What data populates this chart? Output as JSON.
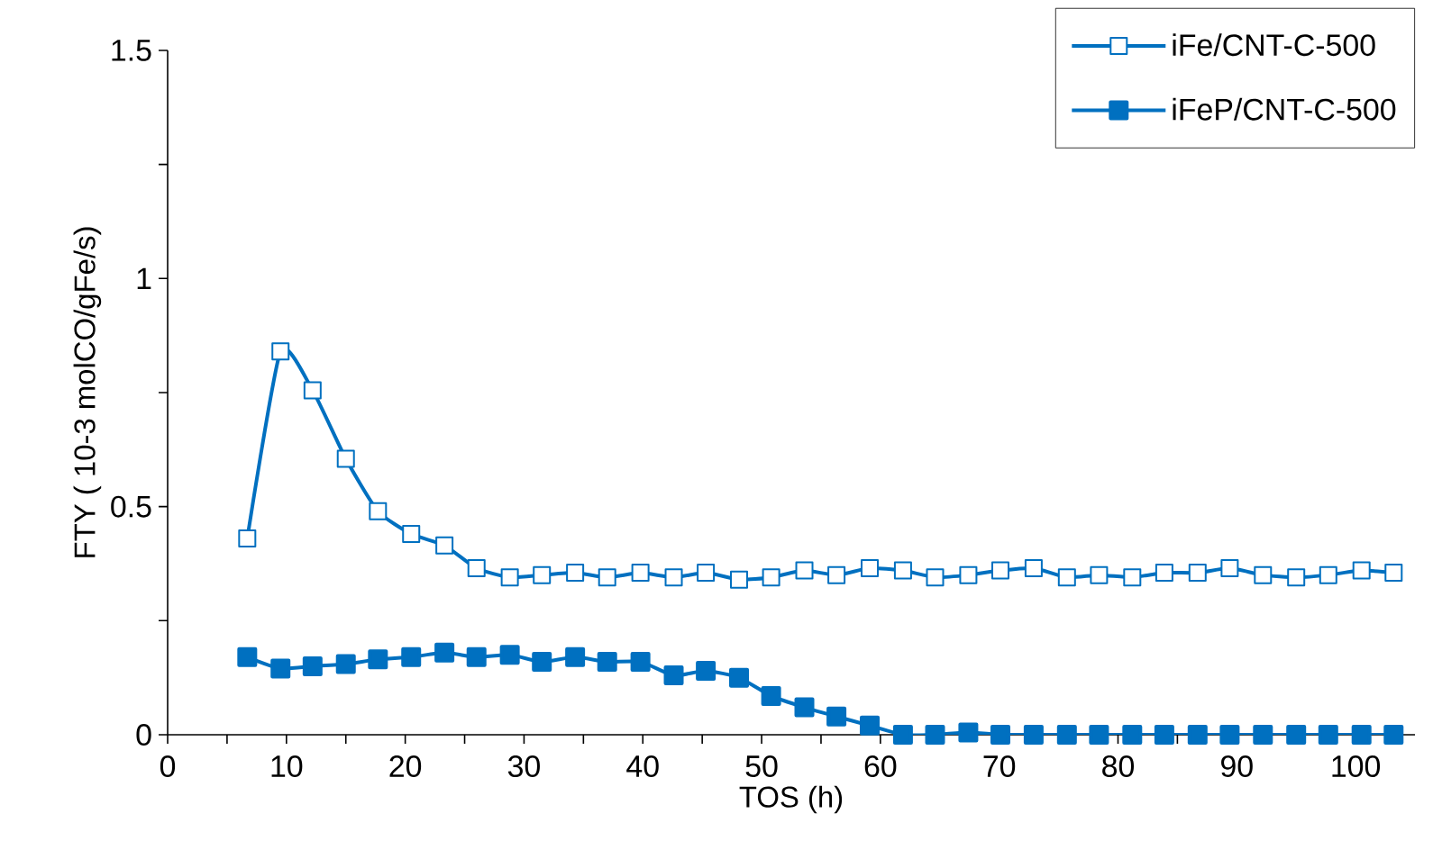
{
  "chart_data": {
    "type": "line",
    "xlabel": "TOS (h)",
    "ylabel": "FTY ( 10-3 molCO/gFe/s)",
    "xlim": [
      0,
      105
    ],
    "ylim": [
      0,
      1.5
    ],
    "xticks": [
      0,
      {
        "value": 5,
        "label": null
      },
      10,
      {
        "value": 15,
        "label": null
      },
      20,
      {
        "value": 25,
        "label": null
      },
      30,
      {
        "value": 35,
        "label": null
      },
      40,
      {
        "value": 45,
        "label": null
      },
      50,
      {
        "value": 55,
        "label": null
      },
      60,
      {
        "value": 65,
        "label": null
      },
      70,
      {
        "value": 75,
        "label": null
      },
      80,
      {
        "value": 85,
        "label": null
      },
      90,
      {
        "value": 95,
        "label": null
      },
      100
    ],
    "yticks": [
      0,
      {
        "value": 0.25,
        "label": null
      },
      0.5,
      {
        "value": 0.75,
        "label": null
      },
      1,
      {
        "value": 1.25,
        "label": null
      },
      1.5
    ],
    "grid": false,
    "legend": "top right",
    "line_style": "solid",
    "marker": "square",
    "x": [
      6.7,
      9.5,
      12.2,
      15.0,
      17.7,
      20.5,
      23.3,
      26.0,
      28.8,
      31.5,
      34.3,
      37.0,
      39.8,
      42.6,
      45.3,
      48.1,
      50.8,
      53.6,
      56.3,
      59.1,
      61.9,
      64.6,
      67.4,
      70.1,
      72.9,
      75.7,
      78.4,
      81.2,
      83.9,
      86.7,
      89.4,
      92.2,
      95.0,
      97.7,
      100.5,
      103.2
    ],
    "series": [
      {
        "name": "iFe/CNT-C-500",
        "color": "#0070c0",
        "values": [
          0.43,
          0.84,
          0.755,
          0.605,
          0.49,
          0.44,
          0.415,
          0.365,
          0.345,
          0.35,
          0.355,
          0.345,
          0.355,
          0.345,
          0.355,
          0.34,
          0.345,
          0.36,
          0.35,
          0.365,
          0.36,
          0.345,
          0.35,
          0.36,
          0.365,
          0.345,
          0.35,
          0.345,
          0.355,
          0.355,
          0.365,
          0.35,
          0.345,
          0.35,
          0.36,
          0.355
        ]
      },
      {
        "name": "iFeP/CNT-C-500",
        "color": "#0070c0",
        "values": [
          0.17,
          0.145,
          0.15,
          0.155,
          0.165,
          0.17,
          0.18,
          0.17,
          0.175,
          0.16,
          0.17,
          0.16,
          0.16,
          0.13,
          0.14,
          0.125,
          0.085,
          0.06,
          0.04,
          0.02,
          0,
          0,
          0.005,
          0,
          0,
          0,
          0,
          0,
          0,
          0,
          0,
          0,
          0,
          0,
          0,
          0
        ]
      }
    ]
  }
}
